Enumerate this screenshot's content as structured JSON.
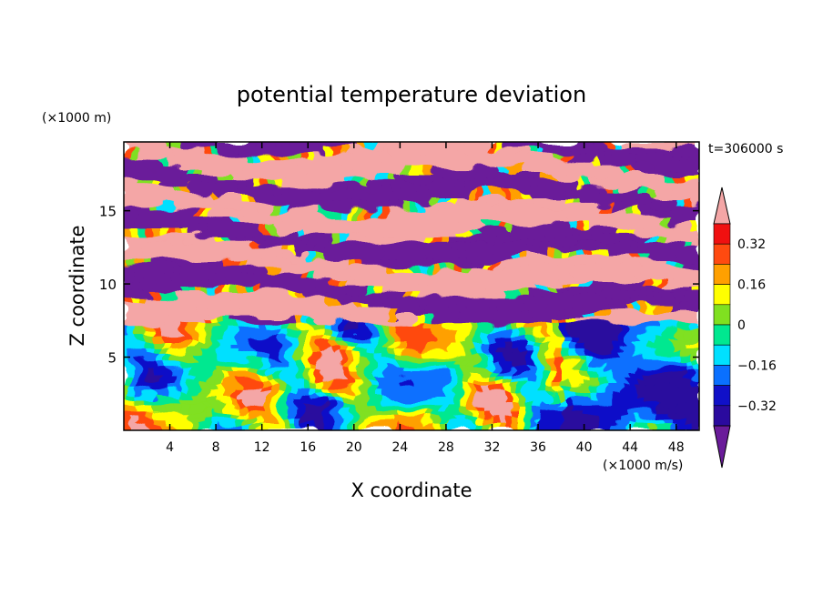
{
  "chart_data": {
    "type": "heatmap",
    "title": "potential temperature deviation",
    "xlabel": "X coordinate",
    "ylabel": "Z coordinate",
    "x_unit": "(×1000 m/s)",
    "y_unit": "(×1000 m)",
    "time_label": "t=306000 s",
    "xlim": [
      0,
      50
    ],
    "ylim": [
      0,
      19.7
    ],
    "xticks": [
      "4",
      "8",
      "12",
      "16",
      "20",
      "24",
      "28",
      "32",
      "36",
      "40",
      "44",
      "48"
    ],
    "yticks": [
      "5",
      "10",
      "15"
    ],
    "colorbar": {
      "tick_labels": [
        "0.32",
        "0.16",
        "0",
        "-0.16",
        "-0.32"
      ],
      "levels": [
        -0.4,
        -0.32,
        -0.24,
        -0.16,
        -0.08,
        0,
        0.08,
        0.16,
        0.24,
        0.32,
        0.4
      ],
      "colors": [
        "#6a1b9a",
        "#2a0a9e",
        "#1010c8",
        "#0a70ff",
        "#00e0ff",
        "#00e890",
        "#80e020",
        "#ffff00",
        "#ffa000",
        "#ff4a10",
        "#f01010",
        "#f4a6a6"
      ],
      "extend": "both"
    }
  }
}
